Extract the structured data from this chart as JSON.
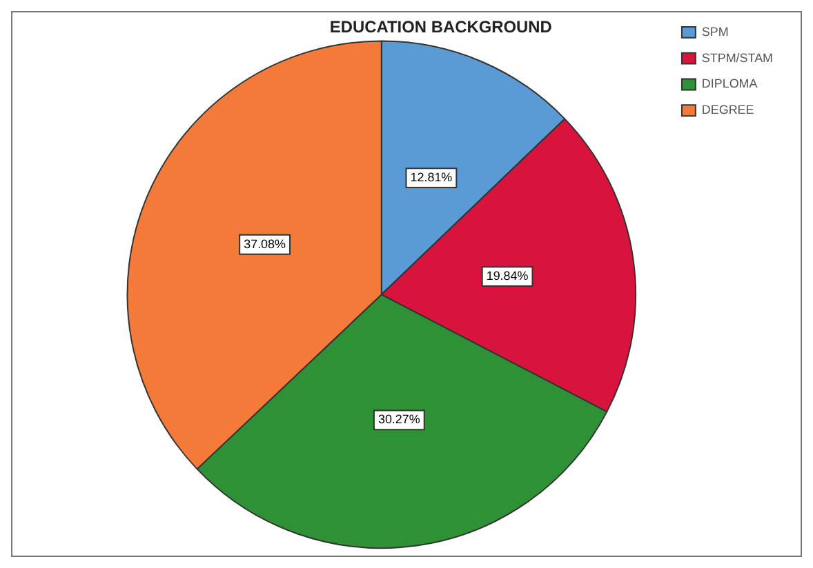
{
  "chart_data": {
    "type": "pie",
    "title": "EDUCATION BACKGROUND",
    "categories": [
      "SPM",
      "STPM/STAM",
      "DIPLOMA",
      "DEGREE"
    ],
    "values": [
      12.81,
      19.84,
      30.27,
      37.08
    ],
    "colors": [
      "#5b9bd5",
      "#d9143c",
      "#2e9135",
      "#f47a3a"
    ],
    "value_labels": [
      "12.81%",
      "19.84%",
      "30.27%",
      "37.08%"
    ],
    "legend": "top right"
  }
}
